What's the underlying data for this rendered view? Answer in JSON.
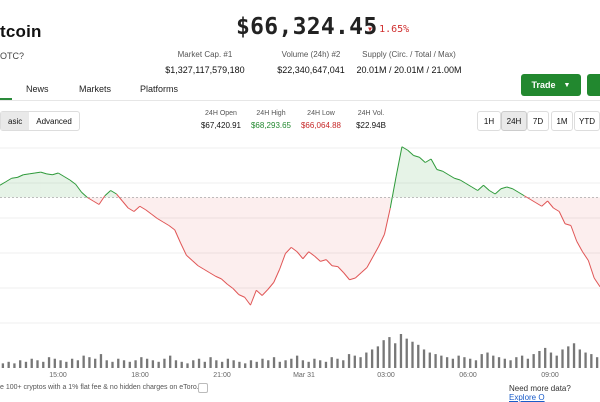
{
  "header": {
    "coin_name": "tcoin",
    "coin_sub": "OTC?",
    "price": "$66,324.45",
    "change": "1.65%",
    "change_color": "#d02e2e"
  },
  "stats": [
    {
      "label": "Market Cap. #1",
      "value": "$1,327,117,579,180"
    },
    {
      "label": "Volume (24h) #2",
      "value": "$22,340,647,041"
    },
    {
      "label": "Supply (Circ. / Total / Max)",
      "value": "20.01M / 20.01M / 21.00M"
    }
  ],
  "tabs": [
    "News",
    "Markets",
    "Platforms"
  ],
  "trade_button": "Trade",
  "view_modes": [
    "asic",
    "Advanced"
  ],
  "stats24": [
    {
      "label": "24H Open",
      "value": "$67,420.91",
      "color": "#111111"
    },
    {
      "label": "24H High",
      "value": "$68,293.65",
      "color": "#22882f"
    },
    {
      "label": "24H Low",
      "value": "$66,064.88",
      "color": "#c62828"
    },
    {
      "label": "24H Vol.",
      "value": "$22.94B",
      "color": "#111111"
    }
  ],
  "ranges": [
    "1H",
    "24H",
    "7D",
    "1M",
    "YTD"
  ],
  "active_range": "24H",
  "chart_data": {
    "type": "area",
    "open_price": 67420.91,
    "up_color": "#2e9a3a",
    "down_color": "#e05555",
    "x_tick_labels": [
      "15:00",
      "18:00",
      "21:00",
      "Mar 31",
      "03:00",
      "06:00",
      "09:00"
    ],
    "price": [
      67560,
      67600,
      67640,
      67650,
      67680,
      67690,
      67700,
      67710,
      67690,
      67680,
      67700,
      67660,
      67620,
      67570,
      67480,
      67420,
      67380,
      67340,
      67440,
      67500,
      67460,
      67380,
      67300,
      67260,
      67320,
      67280,
      67230,
      67180,
      67140,
      67100,
      67050,
      66900,
      66760,
      66700,
      66640,
      66600,
      66560,
      66520,
      66490,
      66430,
      66380,
      66310,
      66280,
      66190,
      66360,
      66300,
      66370,
      66450,
      66600,
      66780,
      66850,
      66800,
      66720,
      66800,
      66750,
      66690,
      66710,
      66640,
      66630,
      66560,
      66480,
      66500,
      66560,
      66620,
      66740,
      66860,
      67000,
      67300,
      67660,
      68000,
      67960,
      67900,
      67880,
      67820,
      67860,
      67740,
      67720,
      67680,
      67640,
      67620,
      67580,
      67540,
      67500,
      67560,
      67500,
      67460,
      67520,
      67540,
      67520,
      67480,
      67440,
      67400,
      67360,
      67320,
      67380,
      67300,
      67260,
      67120,
      67100,
      66920,
      66800,
      66700,
      66500,
      66400
    ],
    "volume": [
      3,
      4,
      3,
      5,
      4,
      6,
      5,
      4,
      7,
      6,
      5,
      4,
      6,
      5,
      8,
      7,
      6,
      9,
      5,
      4,
      6,
      5,
      4,
      5,
      7,
      6,
      5,
      4,
      6,
      8,
      5,
      4,
      3,
      5,
      6,
      4,
      7,
      5,
      4,
      6,
      5,
      4,
      3,
      5,
      4,
      6,
      5,
      7,
      4,
      5,
      6,
      8,
      5,
      4,
      6,
      5,
      4,
      7,
      6,
      5,
      9,
      8,
      7,
      10,
      12,
      14,
      18,
      20,
      16,
      22,
      19,
      17,
      15,
      12,
      10,
      9,
      8,
      7,
      6,
      8,
      7,
      6,
      5,
      9,
      10,
      8,
      7,
      6,
      5,
      7,
      8,
      6,
      9,
      11,
      13,
      10,
      8,
      12,
      14,
      16,
      12,
      10,
      9,
      7
    ]
  },
  "footer": {
    "left": "e 100+ cryptos with a 1% flat fee & no hidden charges on eToro.",
    "right_prefix": "Need more data?",
    "right_link": "Explore O"
  }
}
